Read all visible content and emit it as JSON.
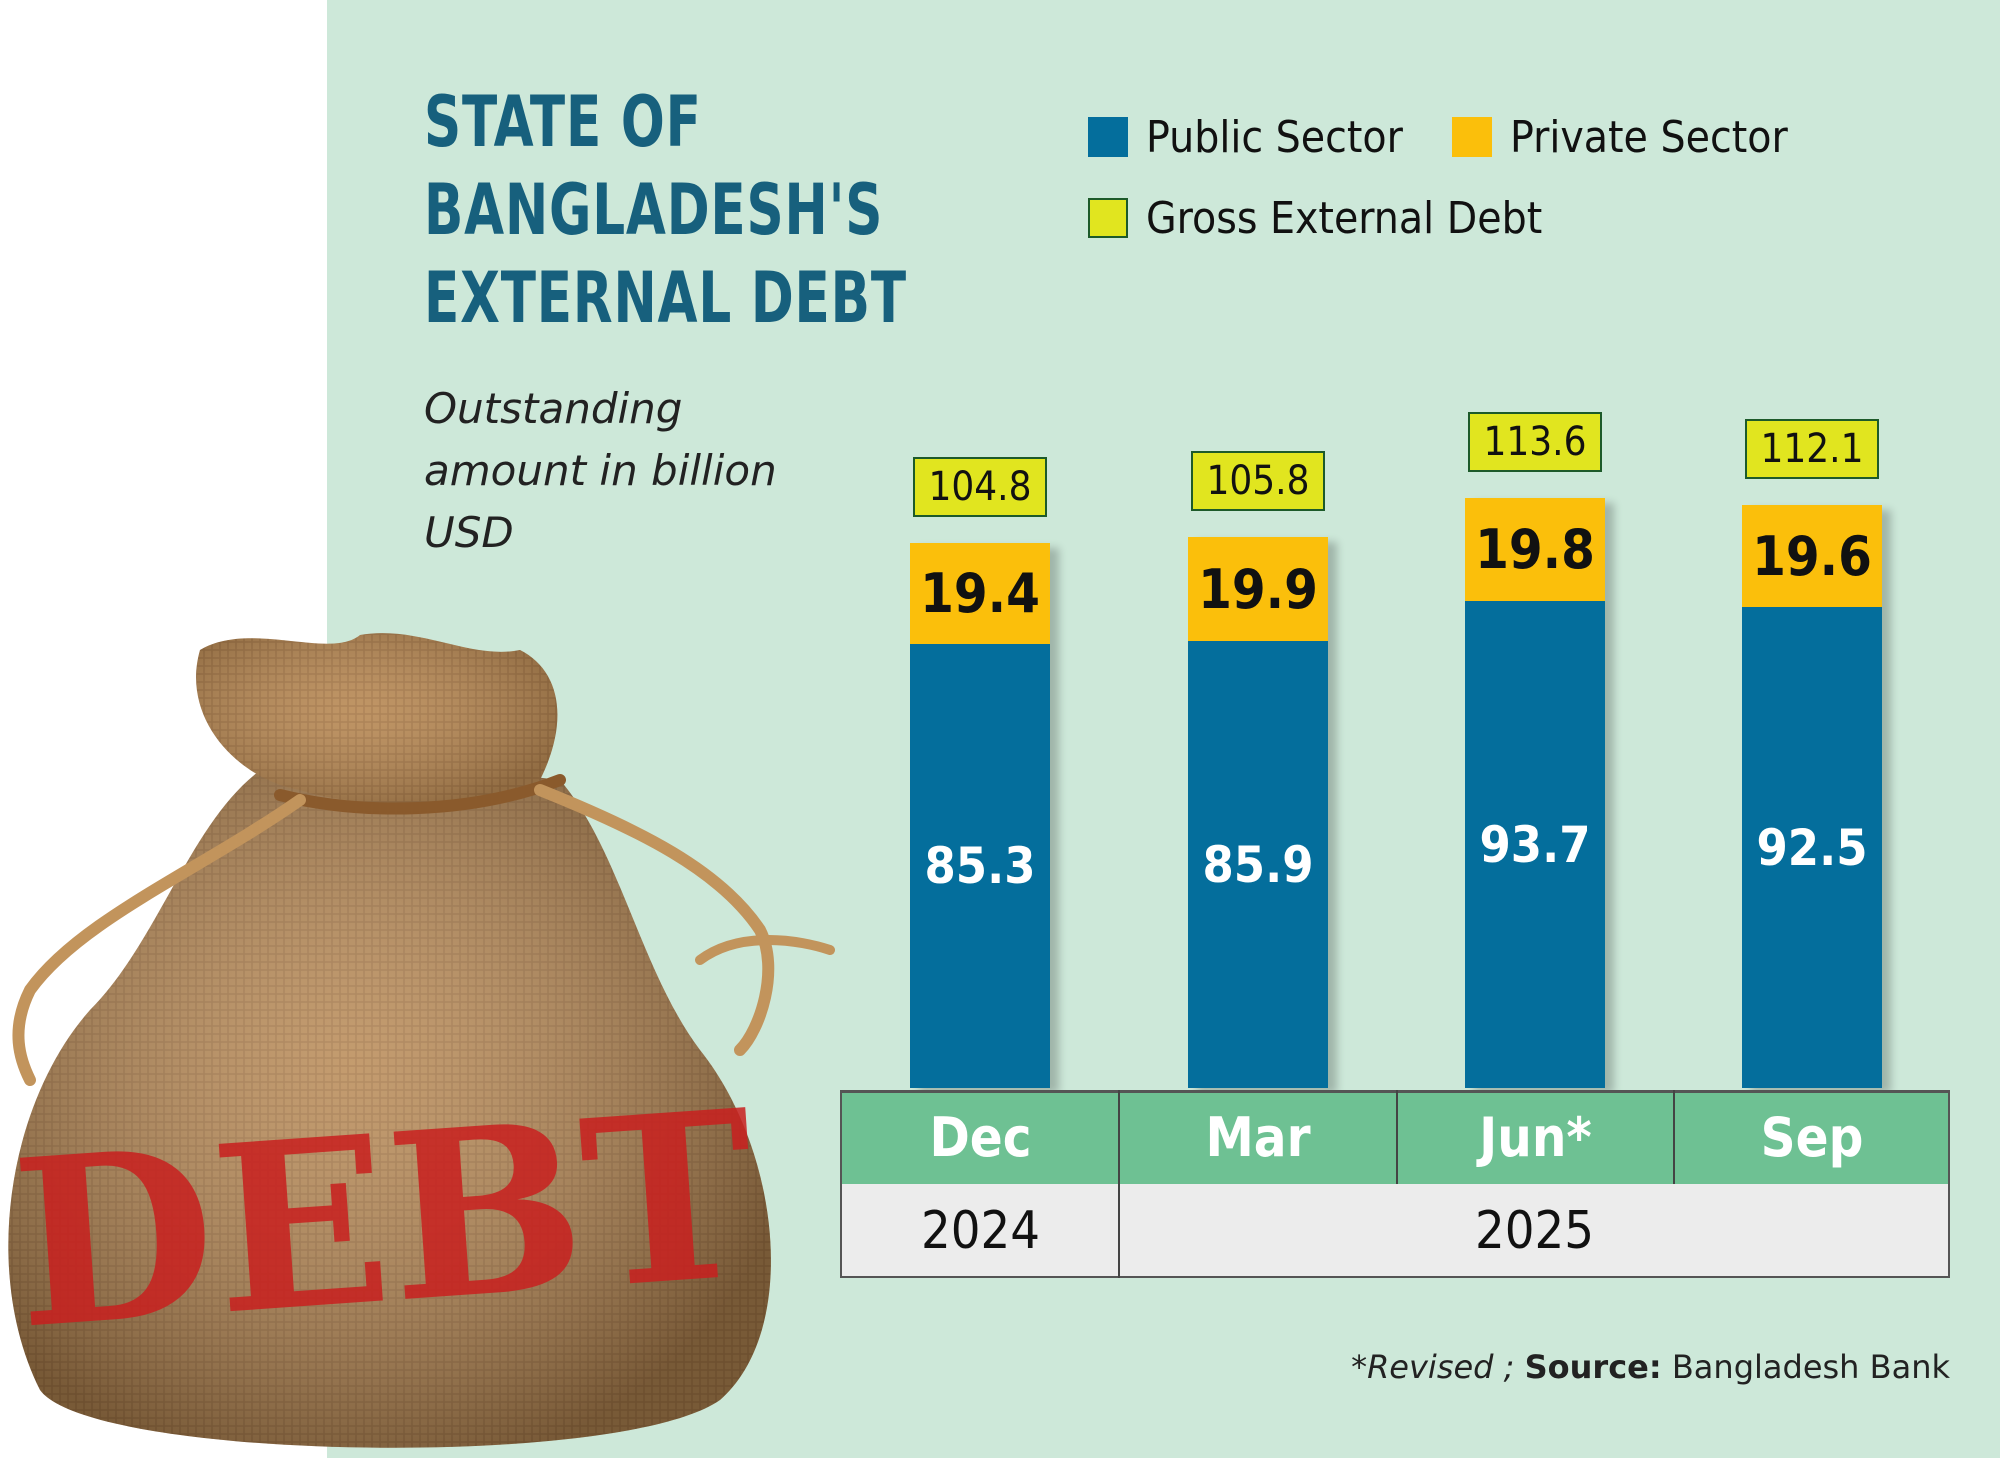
{
  "colors": {
    "background": "#cde8d9",
    "title": "#17607d",
    "public_sector": "#046e9c",
    "private_sector": "#fbbf0b",
    "gross_external_debt": "#e1e51f",
    "month_row": "#6ec193",
    "year_row": "#ececec"
  },
  "title_lines": [
    "STATE OF",
    "BANGLADESH'S",
    "EXTERNAL DEBT"
  ],
  "subtitle_lines": [
    "Outstanding",
    "amount in billion",
    "USD"
  ],
  "legend": {
    "public": "Public Sector",
    "private": "Private Sector",
    "gross": "Gross External Debt"
  },
  "years": {
    "y2024": "2024",
    "y2025": "2025"
  },
  "footnote": {
    "revised": "*Revised ;",
    "source_label": "Source:",
    "source_value": "Bangladesh Bank"
  },
  "illustration": {
    "bag_text": "DEBT"
  },
  "chart_data": {
    "type": "bar",
    "stacked": true,
    "title": "STATE OF BANGLADESH'S EXTERNAL DEBT",
    "subtitle": "Outstanding amount in billion USD",
    "categories": [
      "Dec",
      "Mar",
      "Jun*",
      "Sep"
    ],
    "category_years": [
      "2024",
      "2025",
      "2025",
      "2025"
    ],
    "series": [
      {
        "name": "Public Sector",
        "values": [
          85.3,
          85.9,
          93.7,
          92.5
        ]
      },
      {
        "name": "Private Sector",
        "values": [
          19.4,
          19.9,
          19.8,
          19.6
        ]
      }
    ],
    "totals": {
      "name": "Gross External Debt",
      "values": [
        104.8,
        105.8,
        113.6,
        112.1
      ]
    },
    "labels": {
      "public": [
        "85.3",
        "85.9",
        "93.7",
        "92.5"
      ],
      "private": [
        "19.4",
        "19.9",
        "19.8",
        "19.6"
      ],
      "gross": [
        "104.8",
        "105.8",
        "113.6",
        "112.1"
      ]
    },
    "ylim": [
      0,
      113.6
    ],
    "legend_position": "top-right",
    "grid": false
  }
}
